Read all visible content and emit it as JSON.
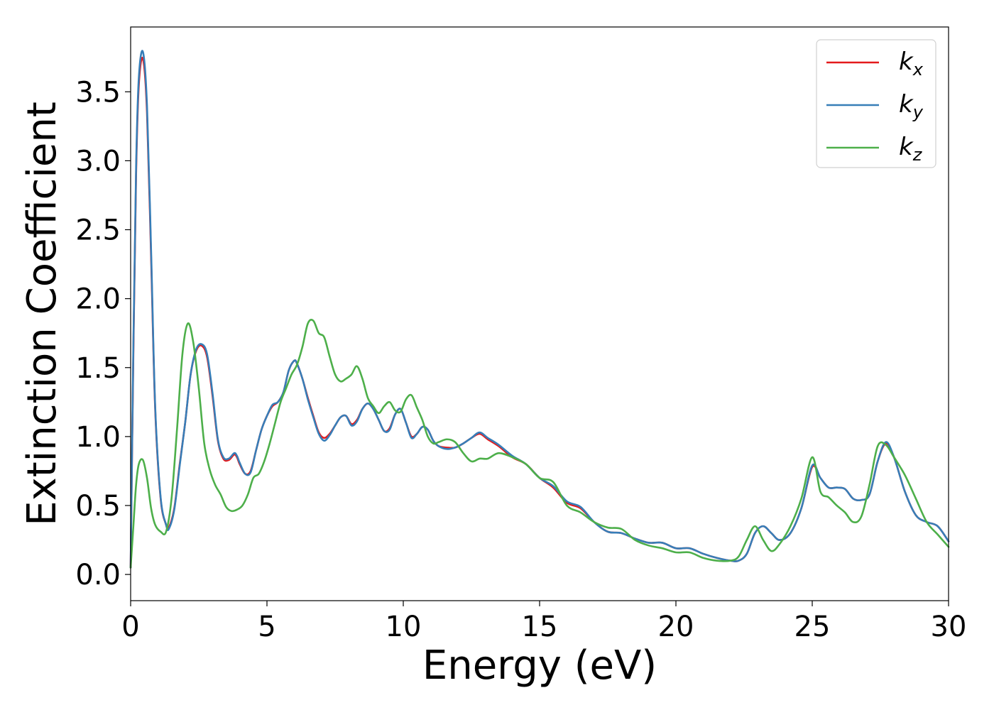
{
  "chart_data": {
    "type": "line",
    "xlabel": "Energy (eV)",
    "ylabel": "Extinction Coefficient",
    "xlim": [
      0,
      30
    ],
    "ylim": [
      -0.19,
      3.97
    ],
    "xticks": [
      0,
      5,
      10,
      15,
      20,
      25,
      30
    ],
    "xtick_labels": [
      "0",
      "5",
      "10",
      "15",
      "20",
      "25",
      "30"
    ],
    "yticks": [
      0.0,
      0.5,
      1.0,
      1.5,
      2.0,
      2.5,
      3.0,
      3.5
    ],
    "ytick_labels": [
      "0.0",
      "0.5",
      "1.0",
      "1.5",
      "2.0",
      "2.5",
      "3.0",
      "3.5"
    ],
    "grid": false,
    "legend_position": "top-right",
    "series": [
      {
        "name": "k",
        "subscript": "x",
        "color": "#e41a1c",
        "x": [
          0,
          0.1,
          0.2,
          0.3,
          0.45,
          0.6,
          0.75,
          0.9,
          1.1,
          1.3,
          1.4,
          1.6,
          1.8,
          2.0,
          2.2,
          2.4,
          2.6,
          2.8,
          3.0,
          3.2,
          3.4,
          3.6,
          3.8,
          3.9,
          4.0,
          4.2,
          4.4,
          4.6,
          4.8,
          5.0,
          5.2,
          5.4,
          5.6,
          5.8,
          6.0,
          6.1,
          6.3,
          6.5,
          6.7,
          6.9,
          7.1,
          7.3,
          7.5,
          7.7,
          7.9,
          8.1,
          8.3,
          8.5,
          8.7,
          8.9,
          9.1,
          9.3,
          9.5,
          9.7,
          9.9,
          10.1,
          10.3,
          10.5,
          10.7,
          10.9,
          11.1,
          11.3,
          11.6,
          11.9,
          12.2,
          12.5,
          12.8,
          13.1,
          13.5,
          14.0,
          14.5,
          15.0,
          15.5,
          16.0,
          16.5,
          17.0,
          17.5,
          18.0,
          18.5,
          19.0,
          19.5,
          20.0,
          20.5,
          21.0,
          21.5,
          22.0,
          22.3,
          22.6,
          22.9,
          23.2,
          23.5,
          23.8,
          24.2,
          24.6,
          25.0,
          25.3,
          25.6,
          25.9,
          26.2,
          26.5,
          26.8,
          27.1,
          27.4,
          27.7,
          28.0,
          28.4,
          28.8,
          29.2,
          29.6,
          30.0
        ],
        "values": [
          0.05,
          1.6,
          2.9,
          3.55,
          3.74,
          3.35,
          2.3,
          1.2,
          0.55,
          0.36,
          0.34,
          0.48,
          0.8,
          1.1,
          1.45,
          1.62,
          1.66,
          1.58,
          1.3,
          0.97,
          0.84,
          0.83,
          0.87,
          0.85,
          0.8,
          0.73,
          0.75,
          0.9,
          1.05,
          1.15,
          1.22,
          1.25,
          1.32,
          1.48,
          1.55,
          1.53,
          1.42,
          1.28,
          1.15,
          1.03,
          0.99,
          1.02,
          1.08,
          1.14,
          1.15,
          1.09,
          1.12,
          1.2,
          1.24,
          1.2,
          1.12,
          1.04,
          1.06,
          1.16,
          1.2,
          1.1,
          1.0,
          1.02,
          1.07,
          1.05,
          0.97,
          0.93,
          0.92,
          0.92,
          0.95,
          0.99,
          1.02,
          0.98,
          0.93,
          0.85,
          0.8,
          0.7,
          0.63,
          0.52,
          0.48,
          0.38,
          0.31,
          0.3,
          0.26,
          0.23,
          0.23,
          0.19,
          0.19,
          0.15,
          0.12,
          0.1,
          0.1,
          0.15,
          0.3,
          0.35,
          0.3,
          0.25,
          0.3,
          0.48,
          0.78,
          0.7,
          0.63,
          0.63,
          0.62,
          0.55,
          0.54,
          0.58,
          0.82,
          0.95,
          0.85,
          0.6,
          0.43,
          0.38,
          0.35,
          0.24
        ]
      },
      {
        "name": "k",
        "subscript": "y",
        "color": "#377eb8",
        "x": [
          0,
          0.1,
          0.2,
          0.3,
          0.45,
          0.6,
          0.75,
          0.9,
          1.1,
          1.3,
          1.4,
          1.6,
          1.8,
          2.0,
          2.2,
          2.4,
          2.6,
          2.8,
          3.0,
          3.2,
          3.4,
          3.6,
          3.8,
          3.9,
          4.0,
          4.2,
          4.4,
          4.6,
          4.8,
          5.0,
          5.2,
          5.4,
          5.6,
          5.8,
          6.0,
          6.1,
          6.3,
          6.5,
          6.7,
          6.9,
          7.1,
          7.3,
          7.5,
          7.7,
          7.9,
          8.1,
          8.3,
          8.5,
          8.7,
          8.9,
          9.1,
          9.3,
          9.5,
          9.7,
          9.9,
          10.1,
          10.3,
          10.5,
          10.7,
          10.9,
          11.1,
          11.3,
          11.6,
          11.9,
          12.2,
          12.5,
          12.8,
          13.1,
          13.5,
          14.0,
          14.5,
          15.0,
          15.5,
          16.0,
          16.5,
          17.0,
          17.5,
          18.0,
          18.5,
          19.0,
          19.5,
          20.0,
          20.5,
          21.0,
          21.5,
          22.0,
          22.3,
          22.6,
          22.9,
          23.2,
          23.5,
          23.8,
          24.2,
          24.6,
          25.0,
          25.3,
          25.6,
          25.9,
          26.2,
          26.5,
          26.8,
          27.1,
          27.4,
          27.7,
          28.0,
          28.4,
          28.8,
          29.2,
          29.6,
          30.0
        ],
        "values": [
          0.05,
          1.65,
          2.95,
          3.6,
          3.79,
          3.4,
          2.35,
          1.22,
          0.56,
          0.36,
          0.33,
          0.47,
          0.79,
          1.1,
          1.45,
          1.63,
          1.67,
          1.6,
          1.32,
          0.98,
          0.85,
          0.84,
          0.88,
          0.86,
          0.81,
          0.73,
          0.74,
          0.9,
          1.05,
          1.15,
          1.23,
          1.25,
          1.32,
          1.48,
          1.55,
          1.53,
          1.42,
          1.27,
          1.14,
          1.02,
          0.97,
          1.01,
          1.08,
          1.14,
          1.15,
          1.08,
          1.11,
          1.2,
          1.24,
          1.2,
          1.12,
          1.04,
          1.05,
          1.16,
          1.2,
          1.1,
          0.99,
          1.02,
          1.07,
          1.05,
          0.97,
          0.93,
          0.91,
          0.92,
          0.95,
          0.99,
          1.03,
          0.99,
          0.94,
          0.86,
          0.8,
          0.7,
          0.64,
          0.53,
          0.49,
          0.38,
          0.31,
          0.3,
          0.26,
          0.23,
          0.23,
          0.19,
          0.19,
          0.15,
          0.12,
          0.1,
          0.1,
          0.15,
          0.3,
          0.35,
          0.3,
          0.25,
          0.3,
          0.48,
          0.79,
          0.7,
          0.63,
          0.63,
          0.62,
          0.55,
          0.54,
          0.58,
          0.82,
          0.96,
          0.85,
          0.6,
          0.43,
          0.38,
          0.35,
          0.24
        ]
      },
      {
        "name": "k",
        "subscript": "z",
        "color": "#4daf4a",
        "x": [
          0,
          0.1,
          0.2,
          0.3,
          0.45,
          0.6,
          0.75,
          0.9,
          1.1,
          1.3,
          1.5,
          1.7,
          1.9,
          2.1,
          2.3,
          2.5,
          2.7,
          2.9,
          3.1,
          3.3,
          3.5,
          3.7,
          3.9,
          4.1,
          4.3,
          4.5,
          4.7,
          4.9,
          5.1,
          5.3,
          5.5,
          5.7,
          5.9,
          6.1,
          6.3,
          6.5,
          6.7,
          6.9,
          7.1,
          7.3,
          7.5,
          7.7,
          7.9,
          8.1,
          8.3,
          8.5,
          8.7,
          8.9,
          9.1,
          9.3,
          9.5,
          9.7,
          9.9,
          10.1,
          10.3,
          10.5,
          10.7,
          10.9,
          11.1,
          11.3,
          11.6,
          11.9,
          12.2,
          12.5,
          12.8,
          13.1,
          13.5,
          14.0,
          14.5,
          15.0,
          15.5,
          16.0,
          16.5,
          17.0,
          17.5,
          18.0,
          18.5,
          19.0,
          19.5,
          20.0,
          20.5,
          21.0,
          21.5,
          22.0,
          22.3,
          22.6,
          22.9,
          23.2,
          23.5,
          23.8,
          24.2,
          24.6,
          25.0,
          25.3,
          25.6,
          25.9,
          26.2,
          26.5,
          26.8,
          27.1,
          27.4,
          27.7,
          28.0,
          28.4,
          28.8,
          29.2,
          29.6,
          30.0
        ],
        "values": [
          0.05,
          0.35,
          0.65,
          0.8,
          0.83,
          0.7,
          0.48,
          0.36,
          0.31,
          0.31,
          0.55,
          1.05,
          1.6,
          1.82,
          1.68,
          1.35,
          0.95,
          0.76,
          0.65,
          0.58,
          0.49,
          0.46,
          0.47,
          0.5,
          0.58,
          0.7,
          0.73,
          0.82,
          0.95,
          1.1,
          1.25,
          1.35,
          1.45,
          1.52,
          1.65,
          1.82,
          1.84,
          1.75,
          1.72,
          1.58,
          1.45,
          1.4,
          1.42,
          1.45,
          1.51,
          1.42,
          1.28,
          1.22,
          1.17,
          1.22,
          1.25,
          1.19,
          1.18,
          1.27,
          1.3,
          1.21,
          1.12,
          1.0,
          0.95,
          0.96,
          0.98,
          0.96,
          0.88,
          0.82,
          0.84,
          0.84,
          0.88,
          0.85,
          0.8,
          0.7,
          0.67,
          0.5,
          0.45,
          0.38,
          0.34,
          0.33,
          0.25,
          0.21,
          0.19,
          0.16,
          0.16,
          0.12,
          0.1,
          0.1,
          0.13,
          0.25,
          0.35,
          0.25,
          0.17,
          0.22,
          0.35,
          0.55,
          0.85,
          0.6,
          0.56,
          0.5,
          0.45,
          0.38,
          0.42,
          0.65,
          0.93,
          0.94,
          0.85,
          0.72,
          0.55,
          0.38,
          0.29,
          0.2
        ]
      }
    ]
  }
}
